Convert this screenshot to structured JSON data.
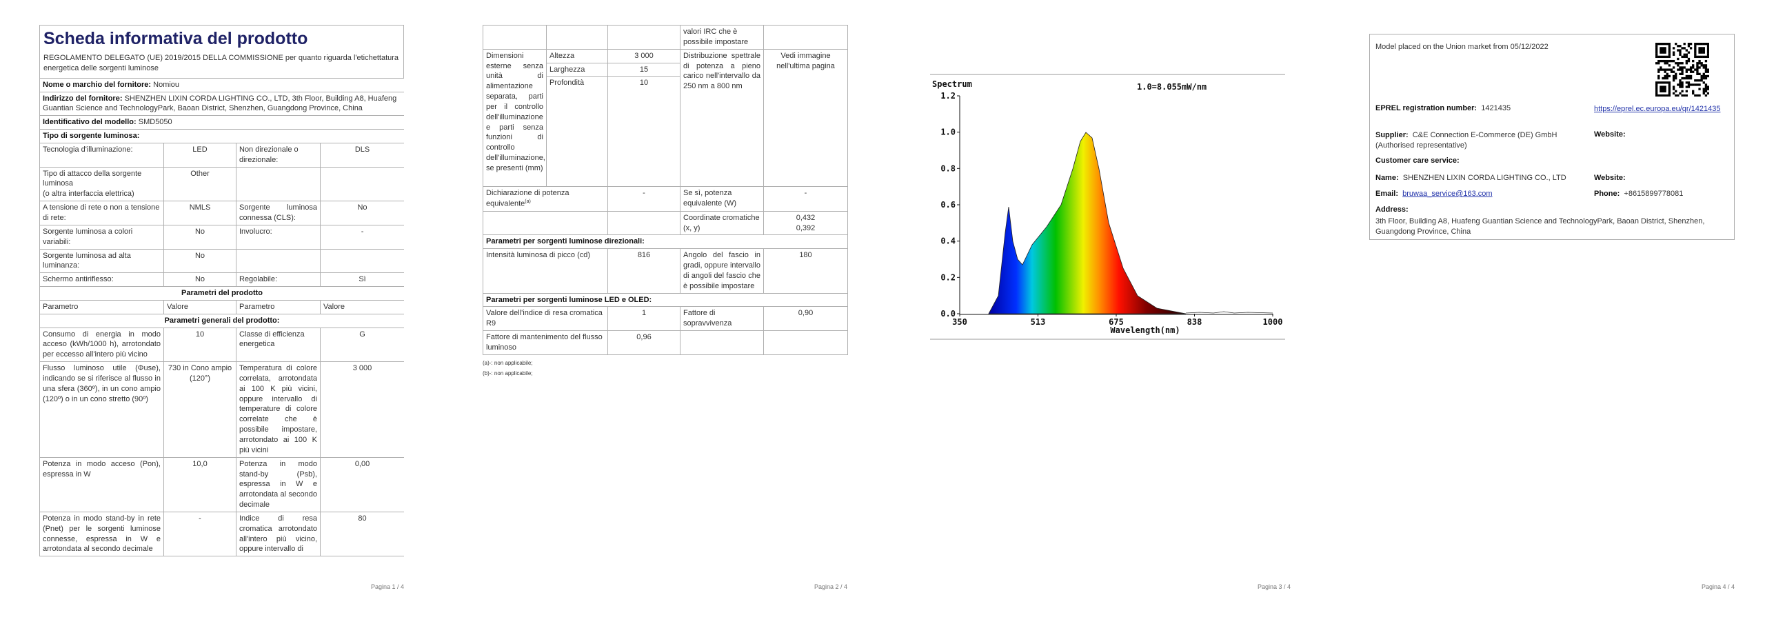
{
  "pages": [
    {
      "title": "Scheda informativa del prodotto",
      "regulation": "REGOLAMENTO DELEGATO (UE) 2019/2015 DELLA COMMISSIONE per quanto riguarda l'etichettatura energetica delle sorgenti luminose",
      "rows": [
        [
          "Nome o marchio del fornitore:",
          "Nomiou"
        ],
        [
          "Indirizzo del fornitore:",
          "SHENZHEN LIXIN CORDA LIGHTING CO., LTD, 3th Floor, Building A8, Huafeng Guantian Science and TechnologyPark, Baoan District, Shenzhen, Guangdong Province, China"
        ],
        [
          "Identificativo del modello:",
          "SMD5050"
        ],
        [
          "Tipo di sorgente luminosa:"
        ],
        [
          "Tecnologia d'illuminazione:",
          "LED",
          "Non direzionale o direzionale:",
          "DLS"
        ],
        [
          "Tipo di attacco della sorgente luminosa",
          "(o altra interfaccia elettrica)",
          "Other"
        ],
        [
          "A tensione di rete o non a tensione di rete:",
          "NMLS",
          "Sorgente luminosa connessa (CLS):",
          "No"
        ],
        [
          "Sorgente luminosa a colori variabili:",
          "No",
          "Involucro:",
          "-"
        ],
        [
          "Sorgente luminosa ad alta luminanza:",
          "No"
        ],
        [
          "Schermo antiriflesso:",
          "No",
          "Regolabile:",
          "Sì"
        ],
        [
          "Parametri del prodotto"
        ],
        [
          "Parametro",
          "Valore",
          "Parametro",
          "Valore"
        ],
        [
          "Parametri generali del prodotto:"
        ],
        [
          "Consumo di energia in modo acceso (kWh/1000 h), arrotondato per eccesso all'intero più vicino",
          "10",
          "Classe di efficienza energetica",
          "G"
        ],
        [
          "Flusso luminoso utile (Φuse), indicando se si riferisce al flusso in una sfera (360º), in un cono ampio (120º) o in un cono stretto (90º)",
          "730 in Cono ampio (120°)",
          "Temperatura di colore correlata, arrotondata ai 100 K più vicini, oppure intervallo di temperature di colore correlate che è possibile impostare, arrotondato ai 100 K più vicini",
          "3 000"
        ],
        [
          "Potenza in modo acceso (Pon), espressa in W",
          "10,0",
          "Potenza in modo stand-by (Psb), espressa in W e arrotondata al secondo decimale",
          "0,00"
        ],
        [
          "Potenza in modo stand-by in rete (Pnet) per le sorgenti luminose connesse, espressa in W e arrotondata al secondo decimale",
          "-",
          "Indice di resa cromatica arrotondato all'intero più vicino, oppure intervallo di",
          "80"
        ]
      ],
      "footer": "Pagina 1 / 4"
    },
    {
      "rows": [
        [
          "valori IRC che è possibile impostare"
        ],
        [
          "Dimensioni esterne senza unità di alimentazione separata, parti per il controllo dell'illuminazione e parti senza funzioni di controllo dell'illuminazione, se presenti (mm)",
          "Altezza",
          "3 000",
          "Distribuzione spettrale di potenza a pieno carico nell'intervallo da 250 nm a 800 nm",
          "Vedi immagine nell'ultima pagina"
        ],
        [
          "Larghezza",
          "15"
        ],
        [
          "Profondità",
          "10"
        ],
        [
          "Dichiarazione di potenza equivalente",
          "(a)",
          "-",
          "Se sì, potenza equivalente (W)",
          "-"
        ],
        [
          "Coordinate cromatiche (x, y)",
          "0,432",
          "0,392"
        ],
        [
          "Parametri per sorgenti luminose direzionali:"
        ],
        [
          "Intensità luminosa di picco (cd)",
          "816",
          "Angolo del fascio in gradi, oppure intervallo di angoli del fascio che è possibile impostare",
          "180"
        ],
        [
          "Parametri per sorgenti luminose LED e OLED:"
        ],
        [
          "Valore dell'indice di resa cromatica R9",
          "1",
          "Fattore di sopravvivenza",
          "0,90"
        ],
        [
          "Fattore di mantenimento del flusso luminoso",
          "0,96"
        ]
      ],
      "footnotes": [
        "(a)-: non applicabile;",
        "(b)-: non applicabile;"
      ],
      "footer": "Pagina 2 / 4"
    },
    {
      "spectrum": {
        "title": "Spectrum",
        "scale": "1.0=8.055mW/nm",
        "yticks": [
          "1.2",
          "1.0",
          "0.8",
          "0.6",
          "0.4",
          "0.2",
          "0.0"
        ],
        "xticks": [
          "350",
          "513",
          "675",
          "838",
          "1000"
        ],
        "xlabel": "Wavelength(nm)"
      },
      "footer": "Pagina 3 / 4"
    },
    {
      "placed": "Model placed on the Union market from 05/12/2022",
      "eprel_label": "EPREL registration number:",
      "eprel_value": "1421435",
      "eprel_link": "https://eprel.ec.europa.eu/qr/1421435",
      "supplier_label": "Supplier:",
      "supplier_value": "C&E Connection E-Commerce (DE) GmbH (Authorised representative)",
      "website_label": "Website:",
      "customer_care": "Customer care service:",
      "name_label": "Name:",
      "name_value": "SHENZHEN LIXIN CORDA LIGHTING CO., LTD",
      "website2_label": "Website:",
      "email_label": "Email:",
      "email_value": "bruwaa_service@163.com",
      "phone_label": "Phone:",
      "phone_value": "+8615899778081",
      "address_label": "Address:",
      "address_value": "3th Floor, Building A8, Huafeng Guantian Science and TechnologyPark, Baoan District, Shenzhen, Guangdong Province, China",
      "footer": "Pagina 4 / 4"
    }
  ]
}
